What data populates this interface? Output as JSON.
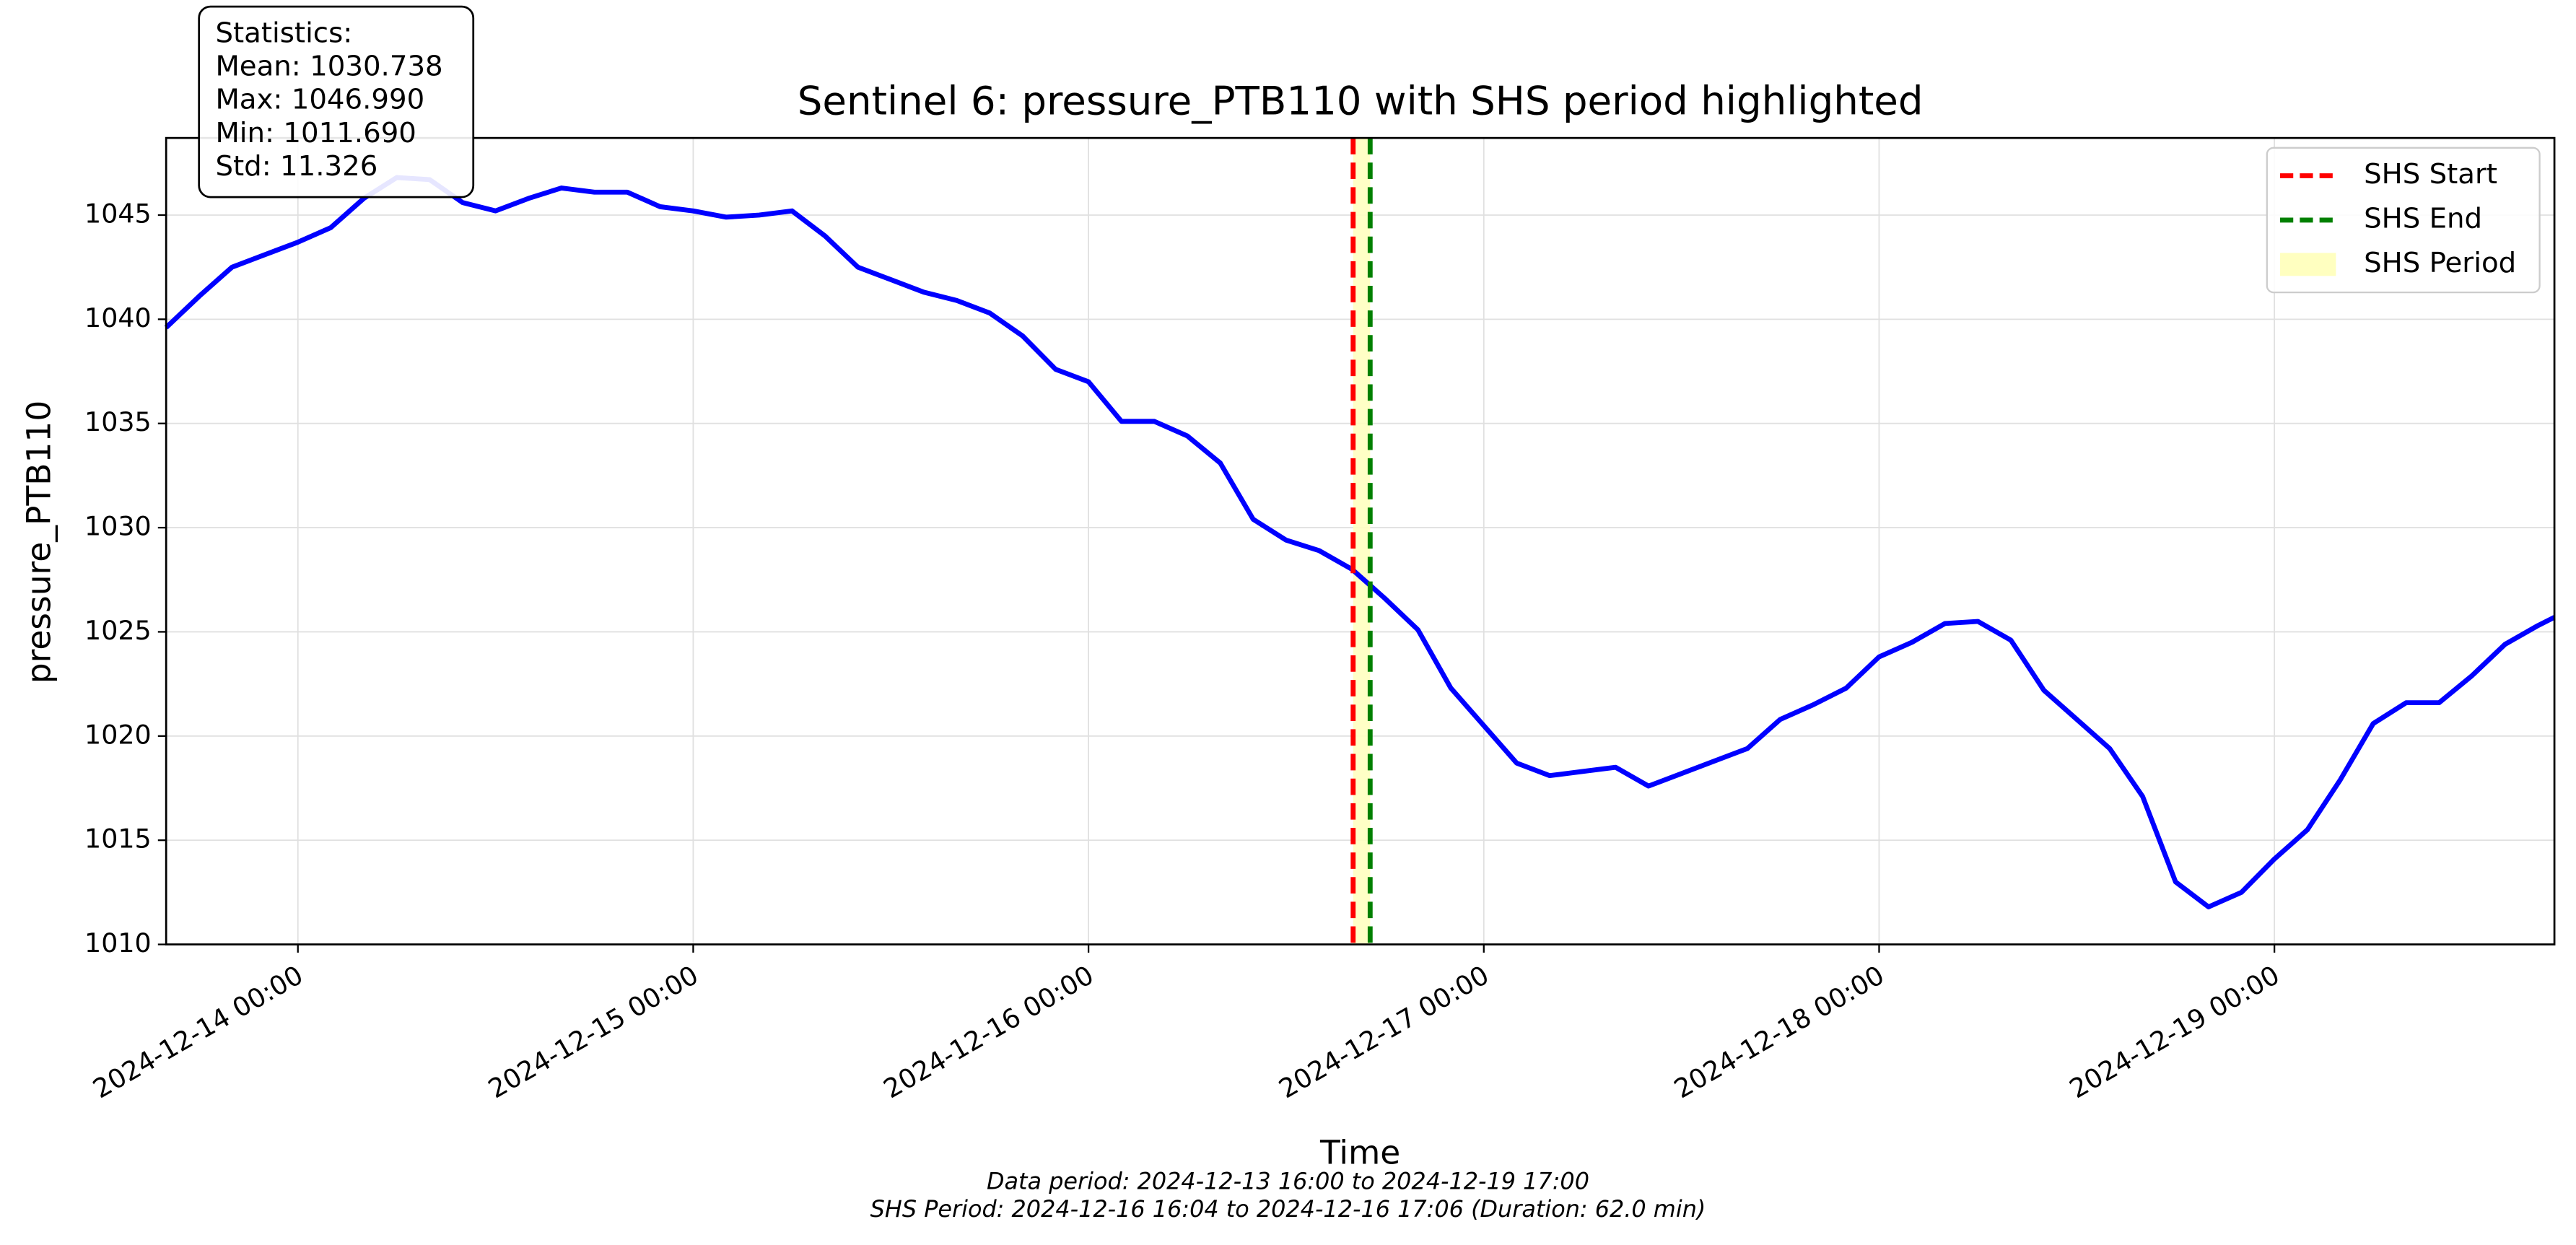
{
  "chart_data": {
    "type": "line",
    "title": "Sentinel 6: pressure_PTB110 with SHS period highlighted",
    "xlabel": "Time",
    "ylabel": "pressure_PTB110",
    "x": [
      "2024-12-13 16:00",
      "2024-12-13 18:00",
      "2024-12-13 20:00",
      "2024-12-13 22:00",
      "2024-12-14 00:00",
      "2024-12-14 02:00",
      "2024-12-14 04:00",
      "2024-12-14 06:00",
      "2024-12-14 08:00",
      "2024-12-14 10:00",
      "2024-12-14 12:00",
      "2024-12-14 14:00",
      "2024-12-14 16:00",
      "2024-12-14 18:00",
      "2024-12-14 20:00",
      "2024-12-14 22:00",
      "2024-12-15 00:00",
      "2024-12-15 02:00",
      "2024-12-15 04:00",
      "2024-12-15 06:00",
      "2024-12-15 08:00",
      "2024-12-15 10:00",
      "2024-12-15 12:00",
      "2024-12-15 14:00",
      "2024-12-15 16:00",
      "2024-12-15 18:00",
      "2024-12-15 20:00",
      "2024-12-15 22:00",
      "2024-12-16 00:00",
      "2024-12-16 02:00",
      "2024-12-16 04:00",
      "2024-12-16 06:00",
      "2024-12-16 08:00",
      "2024-12-16 10:00",
      "2024-12-16 12:00",
      "2024-12-16 14:00",
      "2024-12-16 16:00",
      "2024-12-16 18:00",
      "2024-12-16 20:00",
      "2024-12-16 22:00",
      "2024-12-17 00:00",
      "2024-12-17 02:00",
      "2024-12-17 04:00",
      "2024-12-17 06:00",
      "2024-12-17 08:00",
      "2024-12-17 10:00",
      "2024-12-17 12:00",
      "2024-12-17 14:00",
      "2024-12-17 16:00",
      "2024-12-17 18:00",
      "2024-12-17 20:00",
      "2024-12-17 22:00",
      "2024-12-18 00:00",
      "2024-12-18 02:00",
      "2024-12-18 04:00",
      "2024-12-18 06:00",
      "2024-12-18 08:00",
      "2024-12-18 10:00",
      "2024-12-18 12:00",
      "2024-12-18 14:00",
      "2024-12-18 16:00",
      "2024-12-18 18:00",
      "2024-12-18 20:00",
      "2024-12-18 22:00",
      "2024-12-19 00:00",
      "2024-12-19 02:00",
      "2024-12-19 04:00",
      "2024-12-19 06:00",
      "2024-12-19 08:00",
      "2024-12-19 10:00",
      "2024-12-19 12:00",
      "2024-12-19 14:00",
      "2024-12-19 16:00",
      "2024-12-19 17:00"
    ],
    "series": [
      {
        "name": "pressure_PTB110",
        "color": "#0000ff",
        "values": [
          1039.6,
          1041.1,
          1042.5,
          1043.1,
          1043.7,
          1044.4,
          1045.8,
          1046.8,
          1046.7,
          1045.6,
          1045.2,
          1045.8,
          1046.3,
          1046.1,
          1046.1,
          1045.4,
          1045.2,
          1044.9,
          1045.0,
          1045.2,
          1044.0,
          1042.5,
          1041.9,
          1041.3,
          1040.9,
          1040.3,
          1039.2,
          1037.6,
          1037.0,
          1035.1,
          1035.1,
          1034.4,
          1033.1,
          1030.4,
          1029.4,
          1028.9,
          1028.0,
          1026.6,
          1025.1,
          1022.3,
          1020.5,
          1018.7,
          1018.1,
          1018.3,
          1018.5,
          1017.6,
          1018.2,
          1018.8,
          1019.4,
          1020.8,
          1021.5,
          1022.3,
          1023.8,
          1024.5,
          1025.4,
          1025.5,
          1024.6,
          1022.2,
          1020.8,
          1019.4,
          1017.1,
          1013.0,
          1011.8,
          1012.5,
          1014.1,
          1015.5,
          1017.9,
          1020.6,
          1021.6,
          1021.6,
          1022.9,
          1024.4,
          1025.3,
          1025.7
        ]
      }
    ],
    "shs_start": "2024-12-16 16:04",
    "shs_end": "2024-12-16 17:06",
    "legend": [
      {
        "name": "SHS Start",
        "color": "#ff0000",
        "style": "dashed"
      },
      {
        "name": "SHS End",
        "color": "#008000",
        "style": "dashed"
      },
      {
        "name": "SHS Period",
        "color": "#ffffc0",
        "style": "span"
      }
    ],
    "legend_position": "upper right",
    "xlim": [
      "2024-12-13 16:00",
      "2024-12-19 17:00"
    ],
    "xticks": [
      "2024-12-14 00:00",
      "2024-12-15 00:00",
      "2024-12-16 00:00",
      "2024-12-17 00:00",
      "2024-12-18 00:00",
      "2024-12-19 00:00"
    ],
    "ylim": [
      1010,
      1048.7
    ],
    "yticks": [
      1010,
      1015,
      1020,
      1025,
      1030,
      1035,
      1040,
      1045
    ],
    "grid": true,
    "stats_box": [
      "Statistics:",
      "Mean: 1030.738",
      "Max: 1046.990",
      "Min: 1011.690",
      "Std: 11.326"
    ],
    "footnotes": [
      "Data period: 2024-12-13 16:00 to 2024-12-19 17:00",
      "SHS Period: 2024-12-16 16:04 to 2024-12-16 17:06 (Duration: 62.0 min)"
    ]
  }
}
